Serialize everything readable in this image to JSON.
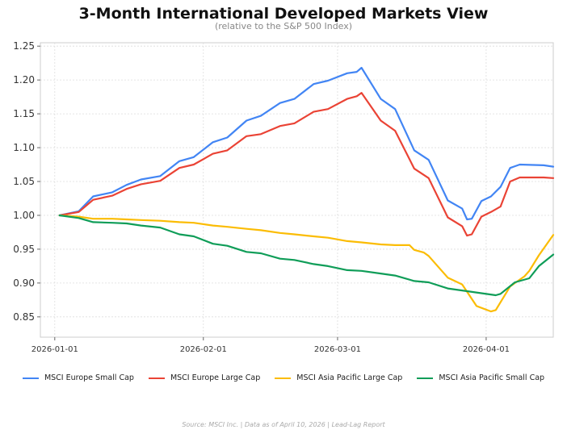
{
  "title": "3-Month International Developed Markets View",
  "subtitle": "(relative to the S&P 500 Index)",
  "source": "Source: MSCI Inc.  |  Data as of April 10, 2026  |  Lead-Lag Report",
  "chart_data": {
    "type": "line",
    "title": "3-Month International Developed Markets View",
    "subtitle": "(relative to the S&P 500 Index)",
    "xlabel": "",
    "ylabel": "",
    "x_range": [
      "2025-12-29",
      "2026-04-15"
    ],
    "ylim": [
      0.82,
      1.255
    ],
    "x_ticks": [
      "2026-01-01",
      "2026-02-01",
      "2026-03-01",
      "2026-04-01"
    ],
    "y_ticks": [
      0.85,
      0.9,
      0.95,
      1.0,
      1.05,
      1.1,
      1.15,
      1.2,
      1.25
    ],
    "grid": true,
    "legend_position": "bottom",
    "series": [
      {
        "name": "MSCI Europe Small Cap",
        "color": "#4285f4",
        "points": [
          [
            "2026-01-02",
            1.0
          ],
          [
            "2026-01-06",
            1.006
          ],
          [
            "2026-01-09",
            1.028
          ],
          [
            "2026-01-13",
            1.034
          ],
          [
            "2026-01-16",
            1.045
          ],
          [
            "2026-01-19",
            1.053
          ],
          [
            "2026-01-23",
            1.058
          ],
          [
            "2026-01-27",
            1.08
          ],
          [
            "2026-01-30",
            1.086
          ],
          [
            "2026-02-03",
            1.108
          ],
          [
            "2026-02-06",
            1.115
          ],
          [
            "2026-02-10",
            1.14
          ],
          [
            "2026-02-13",
            1.147
          ],
          [
            "2026-02-17",
            1.166
          ],
          [
            "2026-02-20",
            1.172
          ],
          [
            "2026-02-24",
            1.194
          ],
          [
            "2026-02-27",
            1.199
          ],
          [
            "2026-03-03",
            1.21
          ],
          [
            "2026-03-05",
            1.212
          ],
          [
            "2026-03-06",
            1.218
          ],
          [
            "2026-03-10",
            1.172
          ],
          [
            "2026-03-13",
            1.157
          ],
          [
            "2026-03-17",
            1.096
          ],
          [
            "2026-03-20",
            1.082
          ],
          [
            "2026-03-24",
            1.022
          ],
          [
            "2026-03-27",
            1.01
          ],
          [
            "2026-03-28",
            0.994
          ],
          [
            "2026-03-29",
            0.995
          ],
          [
            "2026-03-31",
            1.021
          ],
          [
            "2026-04-02",
            1.028
          ],
          [
            "2026-04-04",
            1.042
          ],
          [
            "2026-04-06",
            1.07
          ],
          [
            "2026-04-08",
            1.075
          ],
          [
            "2026-04-13",
            1.074
          ],
          [
            "2026-04-15",
            1.072
          ]
        ]
      },
      {
        "name": "MSCI Europe Large Cap",
        "color": "#ea4335",
        "points": [
          [
            "2026-01-02",
            1.0
          ],
          [
            "2026-01-06",
            1.005
          ],
          [
            "2026-01-09",
            1.023
          ],
          [
            "2026-01-13",
            1.029
          ],
          [
            "2026-01-16",
            1.039
          ],
          [
            "2026-01-19",
            1.046
          ],
          [
            "2026-01-23",
            1.051
          ],
          [
            "2026-01-27",
            1.07
          ],
          [
            "2026-01-30",
            1.075
          ],
          [
            "2026-02-03",
            1.091
          ],
          [
            "2026-02-06",
            1.096
          ],
          [
            "2026-02-10",
            1.117
          ],
          [
            "2026-02-13",
            1.12
          ],
          [
            "2026-02-17",
            1.132
          ],
          [
            "2026-02-20",
            1.136
          ],
          [
            "2026-02-24",
            1.153
          ],
          [
            "2026-02-27",
            1.157
          ],
          [
            "2026-03-03",
            1.172
          ],
          [
            "2026-03-05",
            1.176
          ],
          [
            "2026-03-06",
            1.181
          ],
          [
            "2026-03-10",
            1.14
          ],
          [
            "2026-03-13",
            1.125
          ],
          [
            "2026-03-17",
            1.069
          ],
          [
            "2026-03-20",
            1.055
          ],
          [
            "2026-03-24",
            0.997
          ],
          [
            "2026-03-27",
            0.984
          ],
          [
            "2026-03-28",
            0.97
          ],
          [
            "2026-03-29",
            0.972
          ],
          [
            "2026-03-31",
            0.998
          ],
          [
            "2026-04-02",
            1.005
          ],
          [
            "2026-04-04",
            1.013
          ],
          [
            "2026-04-06",
            1.05
          ],
          [
            "2026-04-08",
            1.056
          ],
          [
            "2026-04-13",
            1.056
          ],
          [
            "2026-04-15",
            1.055
          ]
        ]
      },
      {
        "name": "MSCI Asia Pacific Large Cap",
        "color": "#fbbc04",
        "points": [
          [
            "2026-01-02",
            1.0
          ],
          [
            "2026-01-06",
            0.998
          ],
          [
            "2026-01-09",
            0.995
          ],
          [
            "2026-01-13",
            0.995
          ],
          [
            "2026-01-16",
            0.994
          ],
          [
            "2026-01-19",
            0.993
          ],
          [
            "2026-01-23",
            0.992
          ],
          [
            "2026-01-27",
            0.99
          ],
          [
            "2026-01-30",
            0.989
          ],
          [
            "2026-02-03",
            0.985
          ],
          [
            "2026-02-06",
            0.983
          ],
          [
            "2026-02-10",
            0.98
          ],
          [
            "2026-02-13",
            0.978
          ],
          [
            "2026-02-17",
            0.974
          ],
          [
            "2026-02-20",
            0.972
          ],
          [
            "2026-02-24",
            0.969
          ],
          [
            "2026-02-27",
            0.967
          ],
          [
            "2026-03-03",
            0.962
          ],
          [
            "2026-03-06",
            0.96
          ],
          [
            "2026-03-10",
            0.957
          ],
          [
            "2026-03-13",
            0.956
          ],
          [
            "2026-03-16",
            0.956
          ],
          [
            "2026-03-17",
            0.949
          ],
          [
            "2026-03-19",
            0.945
          ],
          [
            "2026-03-20",
            0.94
          ],
          [
            "2026-03-24",
            0.908
          ],
          [
            "2026-03-27",
            0.898
          ],
          [
            "2026-03-30",
            0.866
          ],
          [
            "2026-04-02",
            0.858
          ],
          [
            "2026-04-03",
            0.86
          ],
          [
            "2026-04-06",
            0.895
          ],
          [
            "2026-04-09",
            0.91
          ],
          [
            "2026-04-10",
            0.918
          ],
          [
            "2026-04-12",
            0.941
          ],
          [
            "2026-04-15",
            0.971
          ]
        ]
      },
      {
        "name": "MSCI Asia Pacific Small Cap",
        "color": "#0f9d58",
        "points": [
          [
            "2026-01-02",
            1.0
          ],
          [
            "2026-01-06",
            0.996
          ],
          [
            "2026-01-09",
            0.99
          ],
          [
            "2026-01-13",
            0.989
          ],
          [
            "2026-01-16",
            0.988
          ],
          [
            "2026-01-19",
            0.985
          ],
          [
            "2026-01-23",
            0.982
          ],
          [
            "2026-01-27",
            0.972
          ],
          [
            "2026-01-30",
            0.969
          ],
          [
            "2026-02-03",
            0.958
          ],
          [
            "2026-02-06",
            0.955
          ],
          [
            "2026-02-10",
            0.946
          ],
          [
            "2026-02-13",
            0.944
          ],
          [
            "2026-02-17",
            0.936
          ],
          [
            "2026-02-20",
            0.934
          ],
          [
            "2026-02-24",
            0.928
          ],
          [
            "2026-02-27",
            0.925
          ],
          [
            "2026-03-03",
            0.919
          ],
          [
            "2026-03-06",
            0.918
          ],
          [
            "2026-03-10",
            0.914
          ],
          [
            "2026-03-13",
            0.911
          ],
          [
            "2026-03-17",
            0.903
          ],
          [
            "2026-03-20",
            0.901
          ],
          [
            "2026-03-24",
            0.892
          ],
          [
            "2026-03-27",
            0.889
          ],
          [
            "2026-03-31",
            0.885
          ],
          [
            "2026-04-03",
            0.882
          ],
          [
            "2026-04-04",
            0.884
          ],
          [
            "2026-04-07",
            0.901
          ],
          [
            "2026-04-10",
            0.907
          ],
          [
            "2026-04-12",
            0.925
          ],
          [
            "2026-04-15",
            0.942
          ]
        ]
      }
    ]
  }
}
